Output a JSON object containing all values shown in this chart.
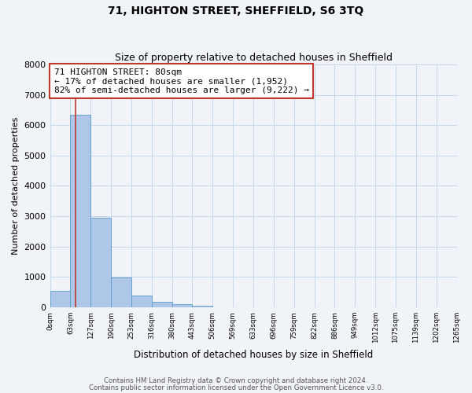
{
  "title": "71, HIGHTON STREET, SHEFFIELD, S6 3TQ",
  "subtitle": "Size of property relative to detached houses in Sheffield",
  "xlabel": "Distribution of detached houses by size in Sheffield",
  "ylabel": "Number of detached properties",
  "bin_labels": [
    "0sqm",
    "63sqm",
    "127sqm",
    "190sqm",
    "253sqm",
    "316sqm",
    "380sqm",
    "443sqm",
    "506sqm",
    "569sqm",
    "633sqm",
    "696sqm",
    "759sqm",
    "822sqm",
    "886sqm",
    "949sqm",
    "1012sqm",
    "1075sqm",
    "1139sqm",
    "1202sqm",
    "1265sqm"
  ],
  "bar_heights": [
    550,
    6350,
    2950,
    970,
    380,
    190,
    110,
    60,
    0,
    0,
    0,
    0,
    0,
    0,
    0,
    0,
    0,
    0,
    0,
    0
  ],
  "bar_color": "#aec6e8",
  "bar_edge_color": "#5a9ac8",
  "bar_edge_width": 0.6,
  "vline_color": "#c0392b",
  "vline_linewidth": 1.2,
  "annotation_line1": "71 HIGHTON STREET: 80sqm",
  "annotation_line2": "← 17% of detached houses are smaller (1,952)",
  "annotation_line3": "82% of semi-detached houses are larger (9,222) →",
  "annotation_box_color": "#ffffff",
  "annotation_box_edge": "#c0392b",
  "ylim": [
    0,
    8000
  ],
  "yticks": [
    0,
    1000,
    2000,
    3000,
    4000,
    5000,
    6000,
    7000,
    8000
  ],
  "grid_color": "#c8d8e8",
  "background_color": "#f0f4f8",
  "footer_line1": "Contains HM Land Registry data © Crown copyright and database right 2024.",
  "footer_line2": "Contains public sector information licensed under the Open Government Licence v3.0."
}
